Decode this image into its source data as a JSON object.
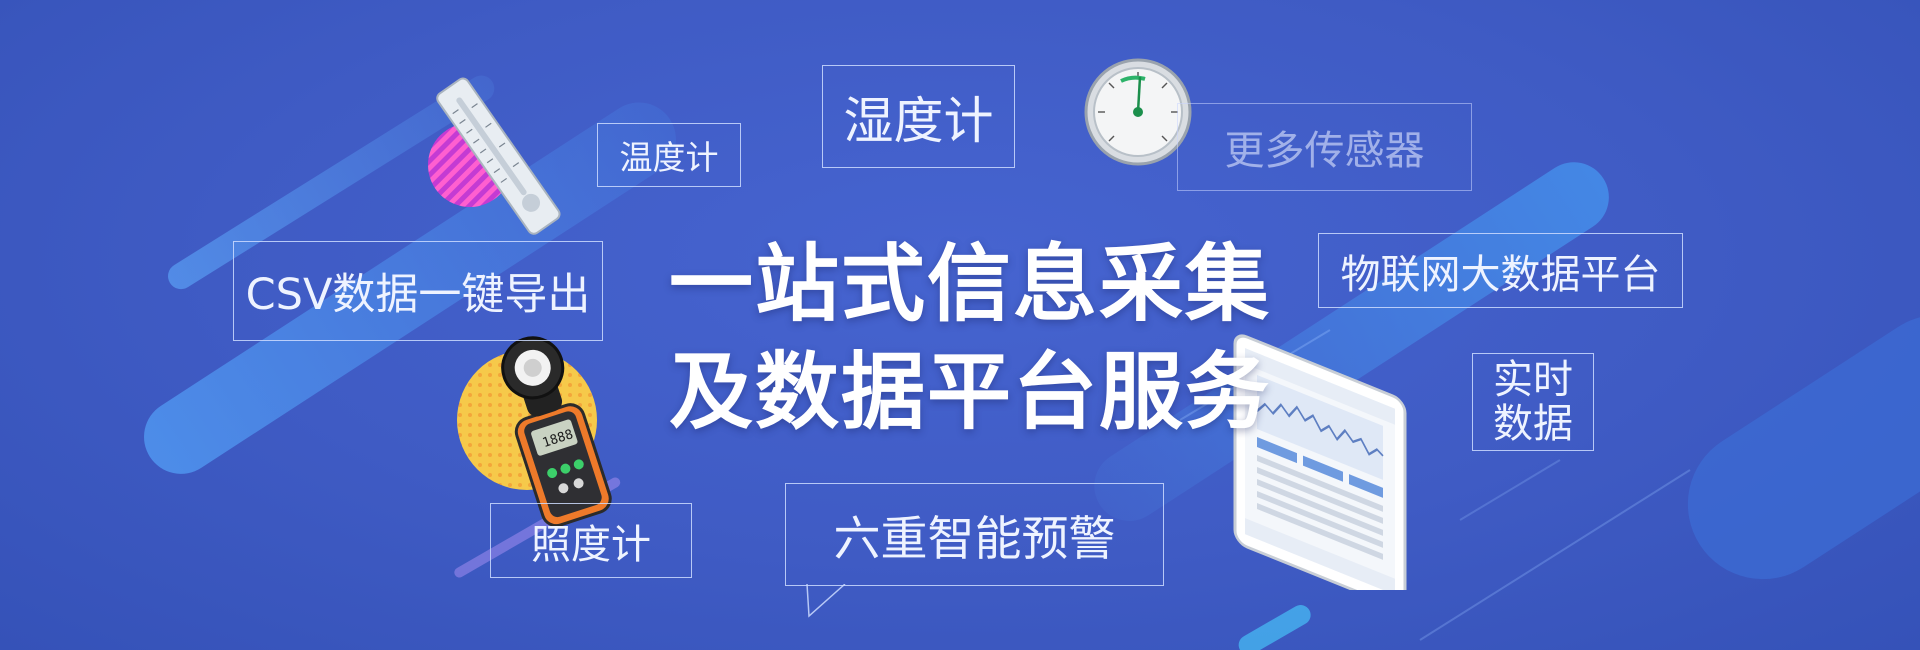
{
  "headline": {
    "line1": "一站式信息采集",
    "line2": "及数据平台服务"
  },
  "labels": {
    "thermometer": "温度计",
    "hygrometer": "湿度计",
    "more_sensors": "更多传感器",
    "csv_export": "CSV数据一键导出",
    "iot_platform": "物联网大数据平台",
    "realtime_line1": "实时",
    "realtime_line2": "数据",
    "lux_meter": "照度计",
    "alerts": "六重智能预警"
  },
  "lux_meter_display": "1888",
  "colors": {
    "background": "#3f5bc4",
    "accent_light_blue": "#4f8fe8",
    "text": "#ffffff"
  },
  "icons": [
    "thermometer-icon",
    "hygrometer-gauge-icon",
    "lux-meter-icon",
    "tablet-dashboard-icon"
  ]
}
